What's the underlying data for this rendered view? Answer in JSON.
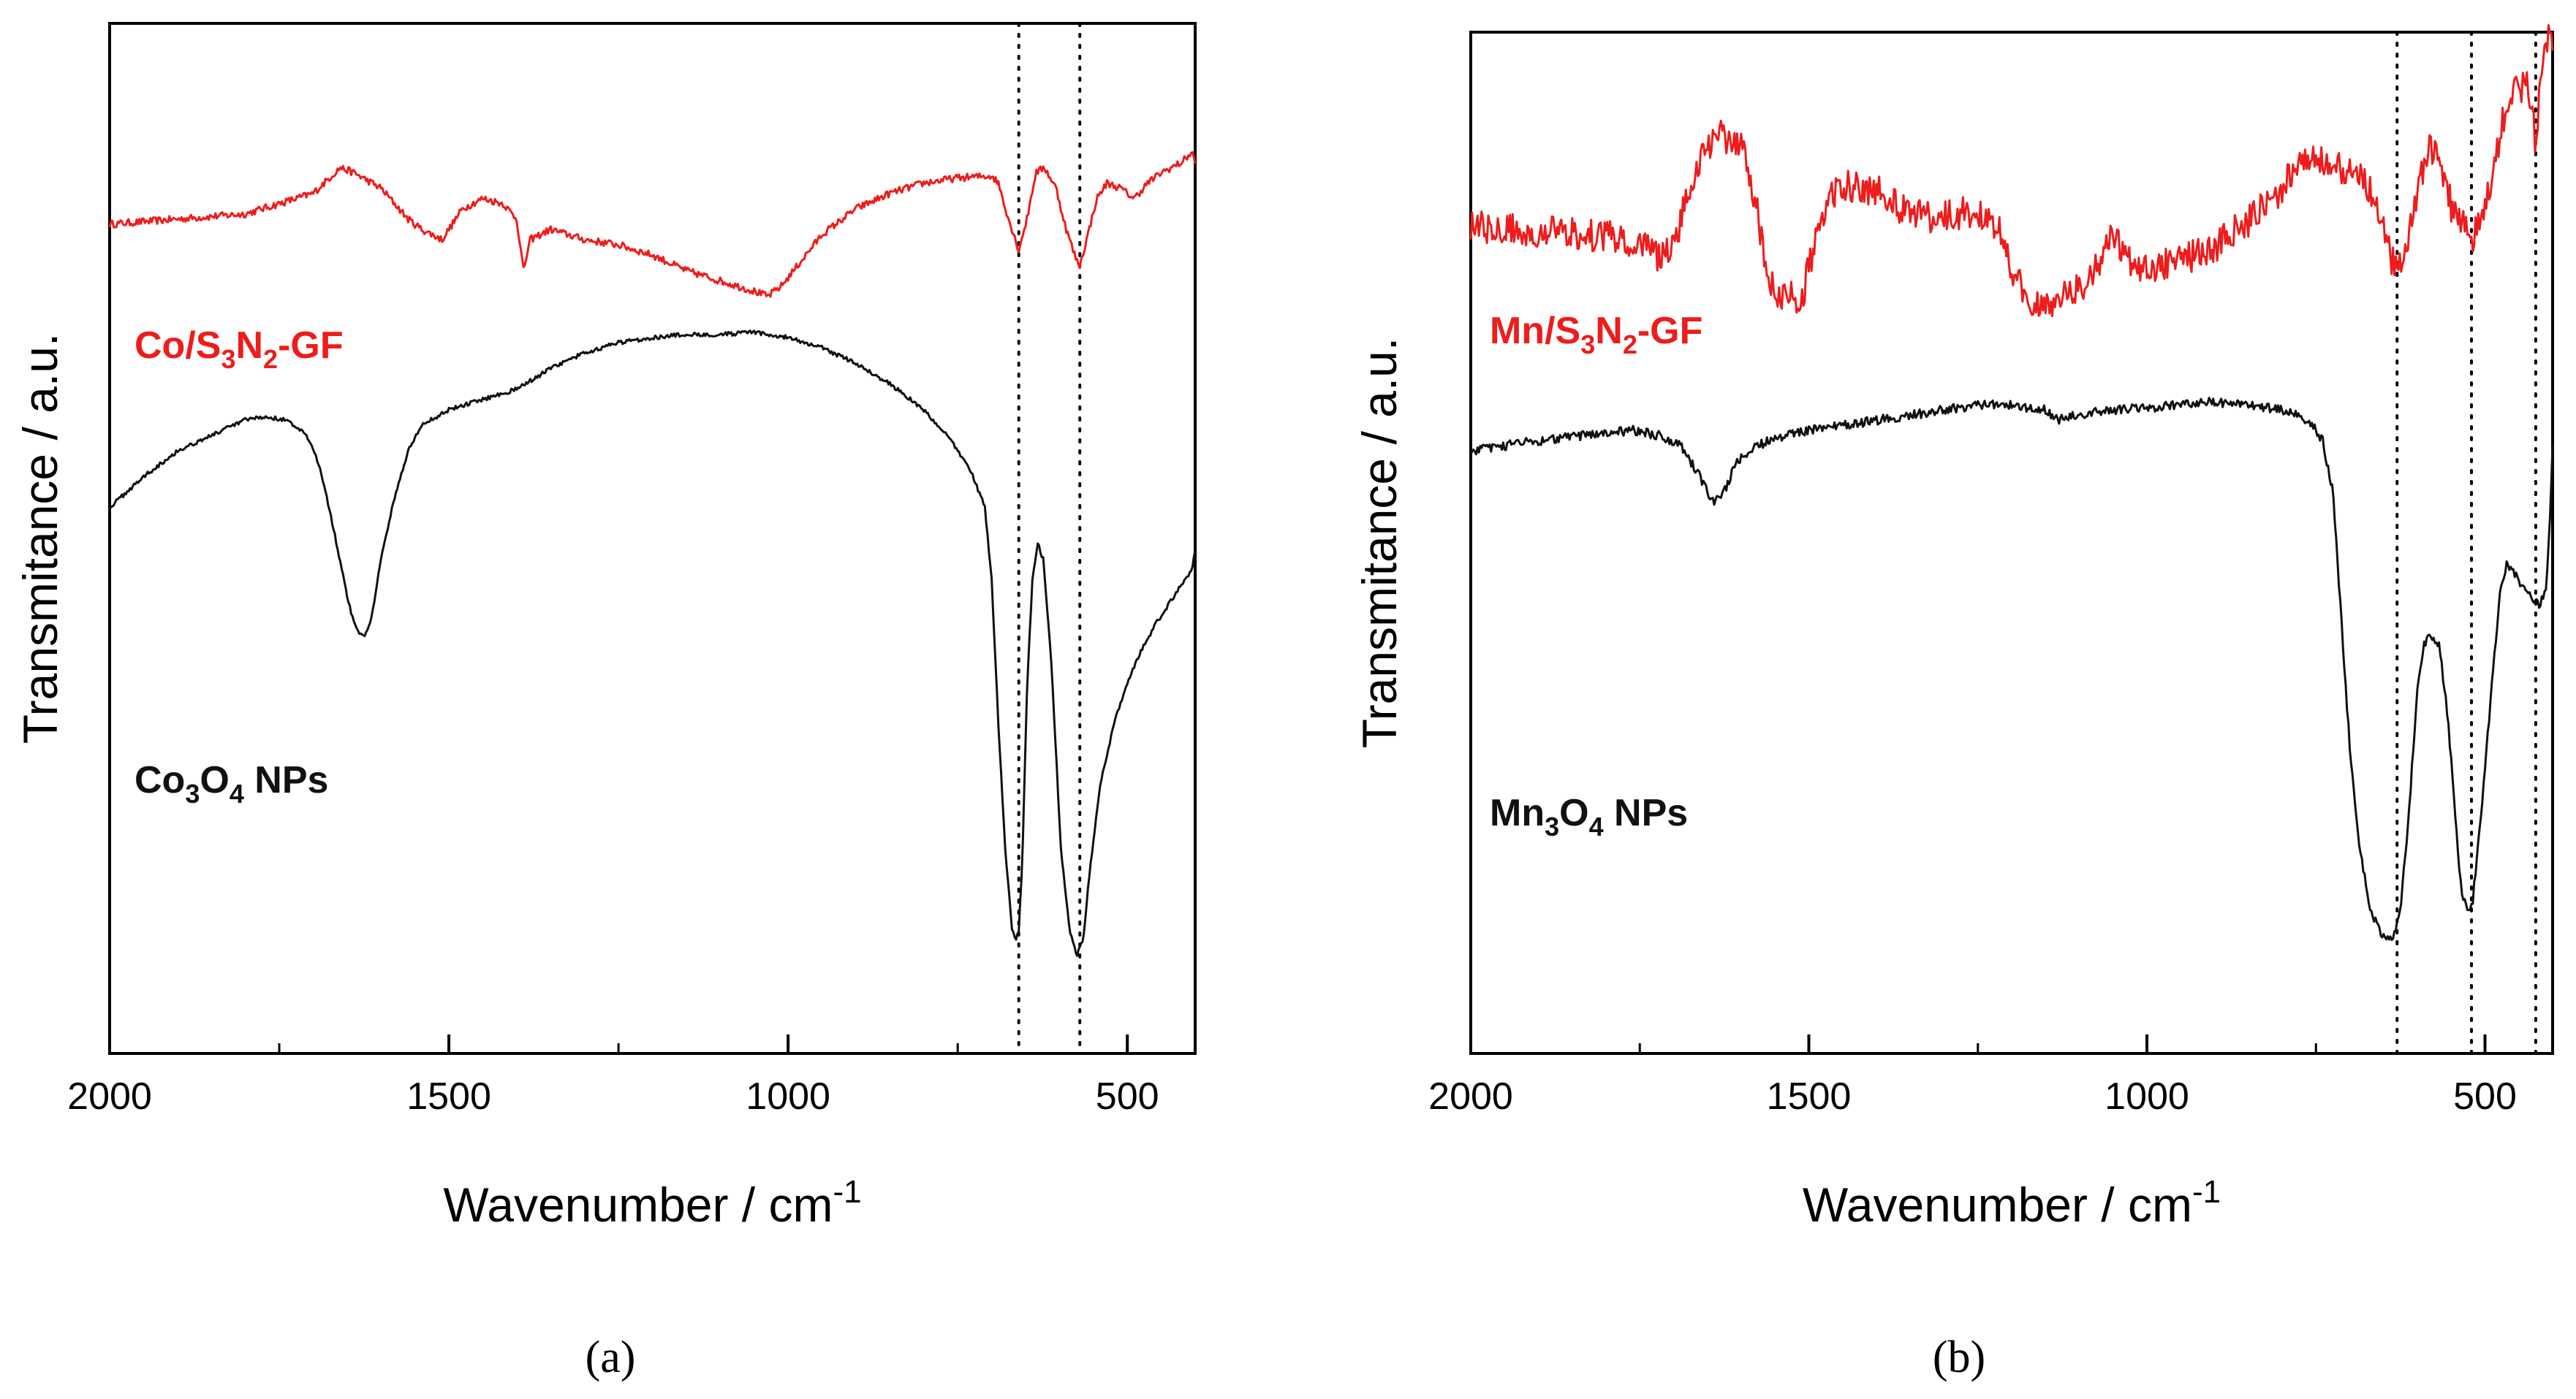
{
  "chart_data": [
    {
      "type": "line",
      "panel_label": "(a)",
      "xlabel": "Wavenumber / cm",
      "xlabel_sup": "-1",
      "ylabel": "Transmitance / a.u.",
      "xlim": [
        2000,
        400
      ],
      "ylim": [
        0,
        100
      ],
      "x_ticks": [
        2000,
        1500,
        1000,
        500
      ],
      "x_minor_step": 250,
      "reference_lines": [
        660,
        570
      ],
      "series": [
        {
          "name": "Co/S3N2-GF",
          "label": {
            "parts": [
              [
                "Co/S",
                ""
              ],
              [
                "3",
                "sub"
              ],
              [
                "N",
                ""
              ],
              [
                "2",
                "sub"
              ],
              [
                "-GF",
                ""
              ]
            ]
          },
          "color": "#ee1c1c",
          "noise": 0.35,
          "points": [
            [
              2000,
              80.5
            ],
            [
              1900,
              81.0
            ],
            [
              1800,
              81.5
            ],
            [
              1750,
              82.5
            ],
            [
              1700,
              83.5
            ],
            [
              1660,
              86
            ],
            [
              1640,
              85.5
            ],
            [
              1600,
              84
            ],
            [
              1560,
              81
            ],
            [
              1540,
              80
            ],
            [
              1510,
              79
            ],
            [
              1480,
              82
            ],
            [
              1450,
              83
            ],
            [
              1420,
              82.5
            ],
            [
              1400,
              81
            ],
            [
              1390,
              76
            ],
            [
              1380,
              79
            ],
            [
              1350,
              80
            ],
            [
              1300,
              79
            ],
            [
              1250,
              78.5
            ],
            [
              1200,
              77.5
            ],
            [
              1150,
              76
            ],
            [
              1100,
              75
            ],
            [
              1050,
              74
            ],
            [
              1030,
              73.5
            ],
            [
              1010,
              74.5
            ],
            [
              980,
              77
            ],
            [
              950,
              79.5
            ],
            [
              900,
              82
            ],
            [
              850,
              83.5
            ],
            [
              800,
              84.5
            ],
            [
              750,
              85
            ],
            [
              700,
              85.2
            ],
            [
              690,
              84.5
            ],
            [
              675,
              81
            ],
            [
              660,
              78
            ],
            [
              648,
              81
            ],
            [
              635,
              85.5
            ],
            [
              622,
              86
            ],
            [
              605,
              84
            ],
            [
              590,
              80
            ],
            [
              575,
              77
            ],
            [
              570,
              76.5
            ],
            [
              560,
              79
            ],
            [
              545,
              83
            ],
            [
              530,
              84.5
            ],
            [
              510,
              84
            ],
            [
              490,
              83
            ],
            [
              470,
              84.5
            ],
            [
              450,
              85.5
            ],
            [
              420,
              86.5
            ],
            [
              405,
              87.5
            ],
            [
              400,
              86.5
            ]
          ]
        },
        {
          "name": "Co3O4 NPs",
          "label": {
            "parts": [
              [
                "Co",
                ""
              ],
              [
                "3",
                "sub"
              ],
              [
                "O",
                ""
              ],
              [
                "4",
                "sub"
              ],
              [
                " NPs",
                ""
              ]
            ]
          },
          "color": "#111111",
          "noise": 0.2,
          "points": [
            [
              2000,
              53
            ],
            [
              1950,
              56
            ],
            [
              1900,
              58.5
            ],
            [
              1850,
              60
            ],
            [
              1800,
              61.5
            ],
            [
              1770,
              61.8
            ],
            [
              1740,
              61.5
            ],
            [
              1710,
              60
            ],
            [
              1690,
              57
            ],
            [
              1670,
              51
            ],
            [
              1655,
              46
            ],
            [
              1645,
              43
            ],
            [
              1635,
              41
            ],
            [
              1625,
              40.5
            ],
            [
              1615,
              42
            ],
            [
              1600,
              48
            ],
            [
              1580,
              54
            ],
            [
              1560,
              58.5
            ],
            [
              1540,
              61
            ],
            [
              1500,
              62.5
            ],
            [
              1450,
              63.5
            ],
            [
              1400,
              64.5
            ],
            [
              1350,
              66.5
            ],
            [
              1300,
              68
            ],
            [
              1250,
              69
            ],
            [
              1200,
              69.5
            ],
            [
              1150,
              69.8
            ],
            [
              1100,
              69.8
            ],
            [
              1050,
              70
            ],
            [
              1000,
              69.5
            ],
            [
              950,
              68.5
            ],
            [
              900,
              67
            ],
            [
              850,
              65
            ],
            [
              800,
              62.5
            ],
            [
              760,
              59.5
            ],
            [
              730,
              56.5
            ],
            [
              710,
              53
            ],
            [
              700,
              46
            ],
            [
              690,
              32
            ],
            [
              680,
              20
            ],
            [
              670,
              12
            ],
            [
              665,
              11
            ],
            [
              660,
              12
            ],
            [
              655,
              18
            ],
            [
              648,
              35
            ],
            [
              640,
              46
            ],
            [
              632,
              49.5
            ],
            [
              624,
              48
            ],
            [
              612,
              38
            ],
            [
              598,
              20
            ],
            [
              585,
              12
            ],
            [
              575,
              9.5
            ],
            [
              565,
              11
            ],
            [
              555,
              18
            ],
            [
              540,
              26
            ],
            [
              520,
              32
            ],
            [
              500,
              36
            ],
            [
              480,
              39
            ],
            [
              460,
              41.5
            ],
            [
              440,
              43.5
            ],
            [
              420,
              45.5
            ],
            [
              405,
              47
            ],
            [
              400,
              49
            ]
          ]
        }
      ]
    },
    {
      "type": "line",
      "panel_label": "(b)",
      "xlabel": "Wavenumber / cm",
      "xlabel_sup": "-1",
      "ylabel": "Transmitance / a.u.",
      "xlim": [
        2000,
        400
      ],
      "ylim": [
        0,
        100
      ],
      "x_ticks": [
        2000,
        1500,
        1000,
        500
      ],
      "x_minor_step": 250,
      "reference_lines": [
        630,
        520,
        425
      ],
      "series": [
        {
          "name": "Mn/S3N2-GF",
          "label": {
            "parts": [
              [
                "Mn/S",
                ""
              ],
              [
                "3",
                "sub"
              ],
              [
                "N",
                ""
              ],
              [
                "2",
                "sub"
              ],
              [
                "-GF",
                ""
              ]
            ]
          },
          "color": "#ee1c1c",
          "noise": 1.6,
          "points": [
            [
              2000,
              81
            ],
            [
              1900,
              80.5
            ],
            [
              1800,
              80
            ],
            [
              1750,
              79.5
            ],
            [
              1720,
              78
            ],
            [
              1700,
              79
            ],
            [
              1680,
              84
            ],
            [
              1660,
              88
            ],
            [
              1630,
              90
            ],
            [
              1600,
              89
            ],
            [
              1580,
              84
            ],
            [
              1560,
              76
            ],
            [
              1540,
              74
            ],
            [
              1510,
              74
            ],
            [
              1490,
              80
            ],
            [
              1470,
              84
            ],
            [
              1440,
              85
            ],
            [
              1400,
              84.5
            ],
            [
              1350,
              82
            ],
            [
              1300,
              82
            ],
            [
              1250,
              82.5
            ],
            [
              1220,
              81
            ],
            [
              1200,
              77
            ],
            [
              1180,
              74
            ],
            [
              1160,
              73
            ],
            [
              1140,
              73.5
            ],
            [
              1100,
              75
            ],
            [
              1080,
              76
            ],
            [
              1060,
              79
            ],
            [
              1050,
              80.5
            ],
            [
              1040,
              79
            ],
            [
              1020,
              77
            ],
            [
              1000,
              77
            ],
            [
              950,
              77.5
            ],
            [
              900,
              79
            ],
            [
              850,
              81.5
            ],
            [
              800,
              84.5
            ],
            [
              780,
              87
            ],
            [
              760,
              88
            ],
            [
              740,
              87.5
            ],
            [
              720,
              87
            ],
            [
              700,
              86.5
            ],
            [
              680,
              85.5
            ],
            [
              660,
              83
            ],
            [
              645,
              79
            ],
            [
              630,
              76.5
            ],
            [
              615,
              79
            ],
            [
              598,
              85
            ],
            [
              582,
              89
            ],
            [
              565,
              87
            ],
            [
              550,
              83
            ],
            [
              530,
              81
            ],
            [
              518,
              80
            ],
            [
              505,
              82
            ],
            [
              490,
              86
            ],
            [
              475,
              91
            ],
            [
              460,
              94
            ],
            [
              440,
              95
            ],
            [
              430,
              93
            ],
            [
              424,
              88
            ],
            [
              418,
              96
            ],
            [
              410,
              99
            ],
            [
              405,
              100
            ],
            [
              400,
              99
            ]
          ]
        },
        {
          "name": "Mn3O4 NPs",
          "label": {
            "parts": [
              [
                "Mn",
                ""
              ],
              [
                "3",
                "sub"
              ],
              [
                "O",
                ""
              ],
              [
                "4",
                "sub"
              ],
              [
                " NPs",
                ""
              ]
            ]
          },
          "color": "#111111",
          "noise": 0.45,
          "points": [
            [
              2000,
              59
            ],
            [
              1900,
              60
            ],
            [
              1800,
              60.8
            ],
            [
              1760,
              61
            ],
            [
              1720,
              60.5
            ],
            [
              1690,
              59.5
            ],
            [
              1665,
              57
            ],
            [
              1650,
              55
            ],
            [
              1640,
              54
            ],
            [
              1625,
              55
            ],
            [
              1610,
              57.5
            ],
            [
              1590,
              59
            ],
            [
              1560,
              60
            ],
            [
              1500,
              61
            ],
            [
              1450,
              61.5
            ],
            [
              1400,
              62
            ],
            [
              1350,
              62.5
            ],
            [
              1300,
              63
            ],
            [
              1250,
              63.5
            ],
            [
              1200,
              63.5
            ],
            [
              1150,
              63
            ],
            [
              1130,
              62
            ],
            [
              1110,
              62.5
            ],
            [
              1050,
              63
            ],
            [
              1000,
              63.2
            ],
            [
              950,
              63.5
            ],
            [
              900,
              63.8
            ],
            [
              850,
              63.5
            ],
            [
              800,
              63
            ],
            [
              760,
              62
            ],
            [
              740,
              60
            ],
            [
              725,
              55
            ],
            [
              715,
              45
            ],
            [
              700,
              30
            ],
            [
              685,
              20
            ],
            [
              670,
              14
            ],
            [
              655,
              12
            ],
            [
              645,
              11
            ],
            [
              635,
              11.5
            ],
            [
              625,
              14
            ],
            [
              612,
              24
            ],
            [
              600,
              36
            ],
            [
              590,
              40
            ],
            [
              580,
              41
            ],
            [
              568,
              40
            ],
            [
              555,
              33
            ],
            [
              545,
              24
            ],
            [
              535,
              16
            ],
            [
              525,
              14
            ],
            [
              518,
              15
            ],
            [
              505,
              24
            ],
            [
              490,
              36
            ],
            [
              478,
              45
            ],
            [
              468,
              48
            ],
            [
              455,
              47
            ],
            [
              440,
              45
            ],
            [
              428,
              44.5
            ],
            [
              420,
              44
            ],
            [
              410,
              45
            ],
            [
              404,
              52
            ],
            [
              400,
              60
            ]
          ]
        }
      ]
    }
  ]
}
